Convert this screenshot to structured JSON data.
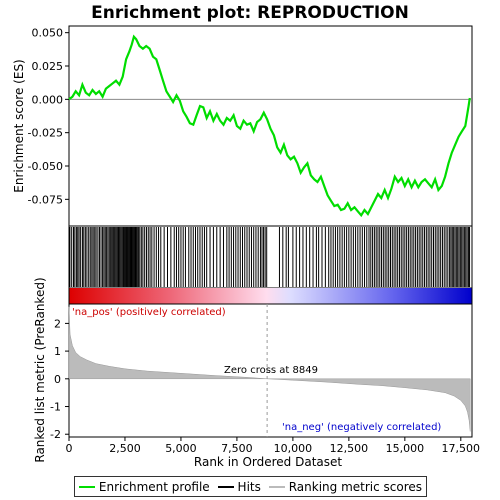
{
  "chart_data": {
    "type": "line",
    "title": "Enrichment plot: REPRODUCTION",
    "xlabel": "Rank in Ordered Dataset",
    "ylabel_top": "Enrichment score (ES)",
    "ylabel_bottom": "Ranked list metric (PreRanked)",
    "xlim": [
      0,
      18000
    ],
    "x_ticks": [
      0,
      2500,
      5000,
      7500,
      10000,
      12500,
      15000,
      17500
    ],
    "x_tick_labels": [
      "0",
      "2,500",
      "5,000",
      "7,500",
      "10,000",
      "12,500",
      "15,000",
      "17,500"
    ],
    "es_ylim": [
      -0.095,
      0.055
    ],
    "es_ticks": [
      0.05,
      0.025,
      0.0,
      -0.025,
      -0.05,
      -0.075
    ],
    "es_tick_labels": [
      "0.050",
      "0.025",
      "0.000",
      "-0.025",
      "-0.050",
      "-0.075"
    ],
    "metric_ylim": [
      -2.1,
      2.7
    ],
    "metric_ticks": [
      2,
      1,
      0,
      -1,
      -2
    ],
    "metric_tick_labels": [
      "2",
      "1",
      "0",
      "-1",
      "-2"
    ],
    "zero_cross": 8849,
    "zero_cross_label": "Zero cross at 8849",
    "pos_label": "'na_pos' (positively correlated)",
    "neg_label": "'na_neg' (negatively correlated)",
    "series": [
      {
        "name": "Enrichment profile",
        "color": "#00dd00",
        "x": [
          0,
          150,
          300,
          450,
          600,
          750,
          900,
          1050,
          1200,
          1350,
          1500,
          1650,
          1800,
          1950,
          2100,
          2250,
          2400,
          2550,
          2700,
          2800,
          2900,
          3000,
          3150,
          3300,
          3450,
          3600,
          3750,
          3900,
          4050,
          4200,
          4350,
          4500,
          4650,
          4800,
          4950,
          5100,
          5250,
          5400,
          5550,
          5700,
          5850,
          6000,
          6150,
          6300,
          6450,
          6600,
          6750,
          6900,
          7050,
          7200,
          7350,
          7500,
          7650,
          7800,
          7950,
          8100,
          8250,
          8400,
          8550,
          8700,
          8850,
          9000,
          9150,
          9300,
          9450,
          9600,
          9750,
          9900,
          10050,
          10200,
          10350,
          10500,
          10650,
          10800,
          10950,
          11100,
          11250,
          11400,
          11550,
          11700,
          11850,
          12000,
          12150,
          12300,
          12450,
          12600,
          12750,
          12900,
          13050,
          13200,
          13350,
          13500,
          13650,
          13800,
          13950,
          14100,
          14250,
          14400,
          14550,
          14700,
          14850,
          15000,
          15150,
          15300,
          15450,
          15600,
          15750,
          15900,
          16050,
          16200,
          16350,
          16500,
          16650,
          16800,
          16950,
          17100,
          17250,
          17400,
          17550,
          17700,
          17800,
          17850,
          17900
        ],
        "y": [
          0.0,
          0.002,
          0.006,
          0.003,
          0.011,
          0.005,
          0.003,
          0.007,
          0.004,
          0.006,
          0.002,
          0.008,
          0.01,
          0.012,
          0.014,
          0.011,
          0.017,
          0.03,
          0.036,
          0.041,
          0.047,
          0.045,
          0.04,
          0.038,
          0.04,
          0.038,
          0.032,
          0.03,
          0.022,
          0.014,
          0.006,
          0.002,
          -0.002,
          0.003,
          -0.001,
          -0.009,
          -0.013,
          -0.018,
          -0.019,
          -0.012,
          -0.005,
          -0.006,
          -0.014,
          -0.009,
          -0.016,
          -0.011,
          -0.016,
          -0.019,
          -0.014,
          -0.016,
          -0.012,
          -0.02,
          -0.022,
          -0.016,
          -0.019,
          -0.018,
          -0.024,
          -0.017,
          -0.015,
          -0.01,
          -0.015,
          -0.022,
          -0.027,
          -0.036,
          -0.04,
          -0.034,
          -0.042,
          -0.045,
          -0.043,
          -0.048,
          -0.055,
          -0.051,
          -0.048,
          -0.057,
          -0.06,
          -0.062,
          -0.058,
          -0.065,
          -0.072,
          -0.076,
          -0.08,
          -0.079,
          -0.083,
          -0.082,
          -0.078,
          -0.083,
          -0.081,
          -0.084,
          -0.087,
          -0.083,
          -0.086,
          -0.081,
          -0.076,
          -0.071,
          -0.074,
          -0.068,
          -0.074,
          -0.067,
          -0.058,
          -0.062,
          -0.059,
          -0.065,
          -0.06,
          -0.066,
          -0.061,
          -0.066,
          -0.062,
          -0.06,
          -0.063,
          -0.066,
          -0.06,
          -0.068,
          -0.065,
          -0.058,
          -0.048,
          -0.04,
          -0.034,
          -0.028,
          -0.024,
          -0.02,
          -0.01,
          -0.005,
          0.001
        ]
      },
      {
        "name": "Hits",
        "color": "#000000",
        "positions": [
          40,
          120,
          200,
          260,
          330,
          390,
          450,
          520,
          600,
          660,
          730,
          800,
          880,
          950,
          1020,
          1080,
          1150,
          1210,
          1290,
          1360,
          1430,
          1500,
          1560,
          1620,
          1680,
          1740,
          1800,
          1860,
          1910,
          1960,
          2010,
          2060,
          2110,
          2160,
          2210,
          2260,
          2310,
          2360,
          2410,
          2450,
          2490,
          2530,
          2570,
          2610,
          2650,
          2690,
          2730,
          2770,
          2810,
          2850,
          2890,
          2930,
          2970,
          3010,
          3050,
          3100,
          3160,
          3230,
          3300,
          3380,
          3460,
          3540,
          3620,
          3700,
          3800,
          3900,
          4000,
          4100,
          4250,
          4400,
          4550,
          4700,
          4800,
          4900,
          5000,
          5100,
          5200,
          5350,
          5450,
          5550,
          5650,
          5750,
          5850,
          5950,
          6050,
          6150,
          6300,
          6450,
          6600,
          6750,
          6900,
          7050,
          7150,
          7250,
          7350,
          7450,
          7550,
          7650,
          7750,
          7850,
          7950,
          8050,
          8150,
          8250,
          8350,
          8450,
          8550,
          8620,
          8690,
          8760,
          8830,
          9400,
          9550,
          9700,
          9800,
          10000,
          10150,
          10300,
          10450,
          10600,
          10750,
          10900,
          11050,
          11150,
          11300,
          11450,
          11600,
          11700,
          11800,
          11900,
          12000,
          12100,
          12200,
          12300,
          12400,
          12500,
          12600,
          12700,
          12800,
          12900,
          13000,
          13100,
          13200,
          13300,
          13400,
          13480,
          13560,
          13640,
          13720,
          13800,
          13880,
          13960,
          14040,
          14120,
          14200,
          14280,
          14360,
          14440,
          14520,
          14600,
          14680,
          14760,
          14840,
          14920,
          15000,
          15080,
          15160,
          15240,
          15320,
          15400,
          15480,
          15560,
          15640,
          15720,
          15800,
          15880,
          15960,
          16040,
          16120,
          16200,
          16280,
          16360,
          16440,
          16520,
          16600,
          16680,
          16760,
          16840,
          16920,
          17000,
          17060,
          17120,
          17180,
          17240,
          17300,
          17360,
          17420,
          17480,
          17540,
          17600,
          17660,
          17720,
          17780,
          17840,
          17890
        ]
      },
      {
        "name": "Ranking metric scores",
        "color": "#bbbbbb",
        "x": [
          0,
          50,
          150,
          300,
          500,
          800,
          1200,
          1800,
          2500,
          3500,
          5000,
          6500,
          8000,
          8849,
          10000,
          11500,
          13000,
          14000,
          15000,
          16000,
          16800,
          17200,
          17500,
          17700,
          17800,
          17870,
          17920
        ],
        "y": [
          2.6,
          1.6,
          1.2,
          0.95,
          0.8,
          0.68,
          0.55,
          0.45,
          0.36,
          0.28,
          0.2,
          0.12,
          0.05,
          0.0,
          -0.05,
          -0.12,
          -0.2,
          -0.25,
          -0.32,
          -0.4,
          -0.5,
          -0.62,
          -0.78,
          -0.98,
          -1.2,
          -1.5,
          -1.9
        ]
      }
    ],
    "legend": {
      "placement": "bottom",
      "items": [
        {
          "label": "Enrichment profile",
          "color": "#00dd00"
        },
        {
          "label": "Hits",
          "color": "#000000"
        },
        {
          "label": "Ranking metric scores",
          "color": "#bbbbbb"
        }
      ]
    },
    "colors": {
      "pos_label": "#cc0000",
      "neg_label": "#0000cc",
      "zero_line": "#999999"
    }
  }
}
